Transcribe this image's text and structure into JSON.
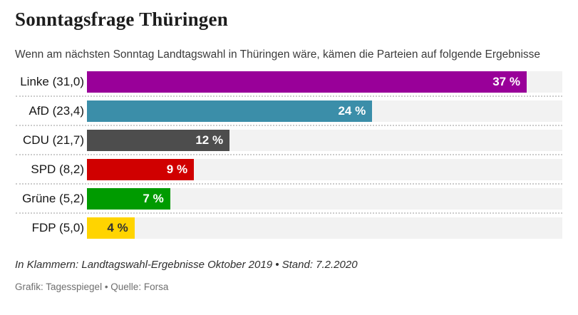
{
  "header": {
    "title": "Sonntagsfrage Thüringen",
    "subtitle": "Wenn am nächsten Sonntag Landtagswahl in Thüringen wäre, kämen die Parteien auf folgende Ergebnisse"
  },
  "footer": {
    "footnote": "In Klammern: Landtagswahl-Ergebnisse Oktober 2019 • Stand: 7.2.2020",
    "credit": "Grafik: Tagesspiegel • Quelle: Forsa"
  },
  "chart_data": {
    "type": "bar",
    "orientation": "horizontal",
    "title": "Sonntagsfrage Thüringen",
    "xlim": [
      0,
      40
    ],
    "axis_max": 40,
    "grid": false,
    "legend": false,
    "track_color": "#f2f2f2",
    "categories": [
      "Linke (31,0)",
      "AfD (23,4)",
      "CDU (21,7)",
      "SPD (8,2)",
      "Grüne (5,2)",
      "FDP (5,0)"
    ],
    "values": [
      37,
      24,
      12,
      9,
      7,
      4
    ],
    "parties": [
      {
        "label": "Linke (31,0)",
        "value": 37,
        "value_label": "37 %",
        "color": "#990099",
        "text_color": "#ffffff"
      },
      {
        "label": "AfD (23,4)",
        "value": 24,
        "value_label": "24 %",
        "color": "#3b8ea9",
        "text_color": "#ffffff"
      },
      {
        "label": "CDU (21,7)",
        "value": 12,
        "value_label": "12 %",
        "color": "#4d4d4d",
        "text_color": "#ffffff"
      },
      {
        "label": "SPD (8,2)",
        "value": 9,
        "value_label": "9 %",
        "color": "#d00000",
        "text_color": "#ffffff"
      },
      {
        "label": "Grüne (5,2)",
        "value": 7,
        "value_label": "7 %",
        "color": "#009b00",
        "text_color": "#ffffff"
      },
      {
        "label": "FDP (5,0)",
        "value": 4,
        "value_label": "4 %",
        "color": "#ffd400",
        "text_color": "#333333"
      }
    ]
  }
}
